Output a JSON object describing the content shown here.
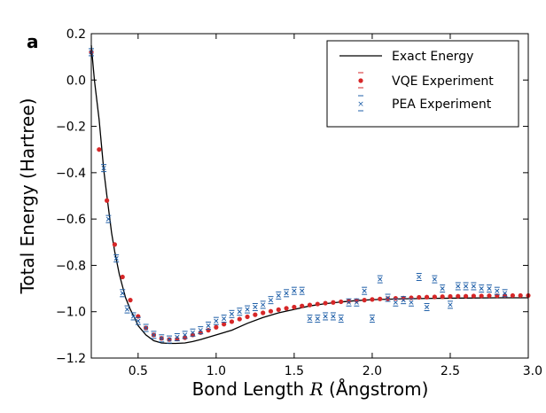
{
  "panel_label": "a",
  "chart_data": {
    "type": "scatter",
    "xlabel": "Bond Length R (Ångstrom)",
    "xlabel_parts": {
      "before": "Bond Length ",
      "var": "R",
      "after": " (Ångstrom)"
    },
    "ylabel": "Total Energy (Hartree)",
    "xlim": [
      0.2,
      3.0
    ],
    "ylim": [
      -1.2,
      0.2
    ],
    "xticks": [
      0.5,
      1.0,
      1.5,
      2.0,
      2.5,
      3.0
    ],
    "xtick_labels": [
      "0.5",
      "1.0",
      "1.5",
      "2.0",
      "2.5",
      "3.0"
    ],
    "yticks": [
      -1.2,
      -1.0,
      -0.8,
      -0.6,
      -0.4,
      -0.2,
      0.0,
      0.2
    ],
    "ytick_labels": [
      "−1.2",
      "−1.0",
      "−0.8",
      "−0.6",
      "−0.4",
      "−0.2",
      "0.0",
      "0.2"
    ],
    "grid": false,
    "legend_position": "top-right",
    "colors": {
      "exact": "#000000",
      "vqe": "#d62728",
      "pea": "#1f5fa8"
    },
    "series": [
      {
        "name": "Exact Energy",
        "kind": "line",
        "x": [
          0.2,
          0.22,
          0.25,
          0.28,
          0.3,
          0.33,
          0.35,
          0.38,
          0.4,
          0.42,
          0.45,
          0.48,
          0.5,
          0.55,
          0.6,
          0.65,
          0.7,
          0.74,
          0.8,
          0.85,
          0.9,
          1.0,
          1.1,
          1.2,
          1.3,
          1.4,
          1.5,
          1.6,
          1.7,
          1.8,
          1.9,
          2.0,
          2.2,
          2.4,
          2.6,
          2.8,
          3.0
        ],
        "y": [
          0.15,
          0.0,
          -0.17,
          -0.39,
          -0.5,
          -0.66,
          -0.74,
          -0.84,
          -0.89,
          -0.94,
          -0.99,
          -1.03,
          -1.06,
          -1.1,
          -1.125,
          -1.135,
          -1.137,
          -1.137,
          -1.135,
          -1.129,
          -1.12,
          -1.1,
          -1.08,
          -1.05,
          -1.025,
          -1.005,
          -0.99,
          -0.975,
          -0.965,
          -0.958,
          -0.952,
          -0.948,
          -0.944,
          -0.942,
          -0.941,
          -0.94,
          -0.94
        ]
      },
      {
        "name": "VQE Experiment",
        "kind": "points",
        "x": [
          0.2,
          0.25,
          0.3,
          0.35,
          0.4,
          0.45,
          0.5,
          0.55,
          0.6,
          0.65,
          0.7,
          0.75,
          0.8,
          0.85,
          0.9,
          0.95,
          1.0,
          1.05,
          1.1,
          1.15,
          1.2,
          1.25,
          1.3,
          1.35,
          1.4,
          1.45,
          1.5,
          1.55,
          1.6,
          1.65,
          1.7,
          1.75,
          1.8,
          1.85,
          1.9,
          1.95,
          2.0,
          2.05,
          2.1,
          2.15,
          2.2,
          2.25,
          2.3,
          2.35,
          2.4,
          2.45,
          2.5,
          2.55,
          2.6,
          2.65,
          2.7,
          2.75,
          2.8,
          2.85,
          2.9,
          2.95,
          3.0
        ],
        "y": [
          0.12,
          -0.3,
          -0.52,
          -0.71,
          -0.85,
          -0.95,
          -1.02,
          -1.07,
          -1.1,
          -1.115,
          -1.12,
          -1.118,
          -1.112,
          -1.1,
          -1.09,
          -1.08,
          -1.067,
          -1.054,
          -1.043,
          -1.032,
          -1.022,
          -1.013,
          -1.005,
          -0.998,
          -0.991,
          -0.985,
          -0.98,
          -0.975,
          -0.971,
          -0.967,
          -0.963,
          -0.96,
          -0.957,
          -0.954,
          -0.952,
          -0.95,
          -0.947,
          -0.945,
          -0.944,
          -0.942,
          -0.941,
          -0.94,
          -0.938,
          -0.937,
          -0.936,
          -0.935,
          -0.934,
          -0.933,
          -0.933,
          -0.932,
          -0.932,
          -0.931,
          -0.931,
          -0.93,
          -0.93,
          -0.93,
          -0.93
        ]
      },
      {
        "name": "PEA Experiment",
        "kind": "points",
        "x": [
          0.2,
          0.28,
          0.31,
          0.36,
          0.4,
          0.43,
          0.47,
          0.5,
          0.55,
          0.6,
          0.65,
          0.7,
          0.75,
          0.8,
          0.85,
          0.9,
          0.95,
          1.0,
          1.05,
          1.1,
          1.15,
          1.2,
          1.25,
          1.3,
          1.35,
          1.4,
          1.45,
          1.5,
          1.55,
          1.6,
          1.65,
          1.7,
          1.75,
          1.8,
          1.85,
          1.9,
          1.95,
          2.0,
          2.05,
          2.1,
          2.15,
          2.2,
          2.25,
          2.3,
          2.35,
          2.4,
          2.45,
          2.5,
          2.55,
          2.6,
          2.65,
          2.7,
          2.75,
          2.8,
          2.85
        ],
        "y": [
          0.12,
          -0.38,
          -0.6,
          -0.77,
          -0.92,
          -0.99,
          -1.02,
          -1.04,
          -1.07,
          -1.1,
          -1.115,
          -1.12,
          -1.11,
          -1.1,
          -1.09,
          -1.08,
          -1.06,
          -1.04,
          -1.03,
          -1.01,
          -1.0,
          -0.99,
          -0.98,
          -0.97,
          -0.95,
          -0.93,
          -0.92,
          -0.91,
          -0.91,
          -1.03,
          -1.03,
          -1.02,
          -1.02,
          -1.03,
          -0.96,
          -0.96,
          -0.91,
          -1.03,
          -0.86,
          -0.94,
          -0.96,
          -0.95,
          -0.96,
          -0.85,
          -0.98,
          -0.86,
          -0.9,
          -0.97,
          -0.89,
          -0.89,
          -0.89,
          -0.9,
          -0.9,
          -0.91,
          -0.92
        ]
      }
    ]
  }
}
